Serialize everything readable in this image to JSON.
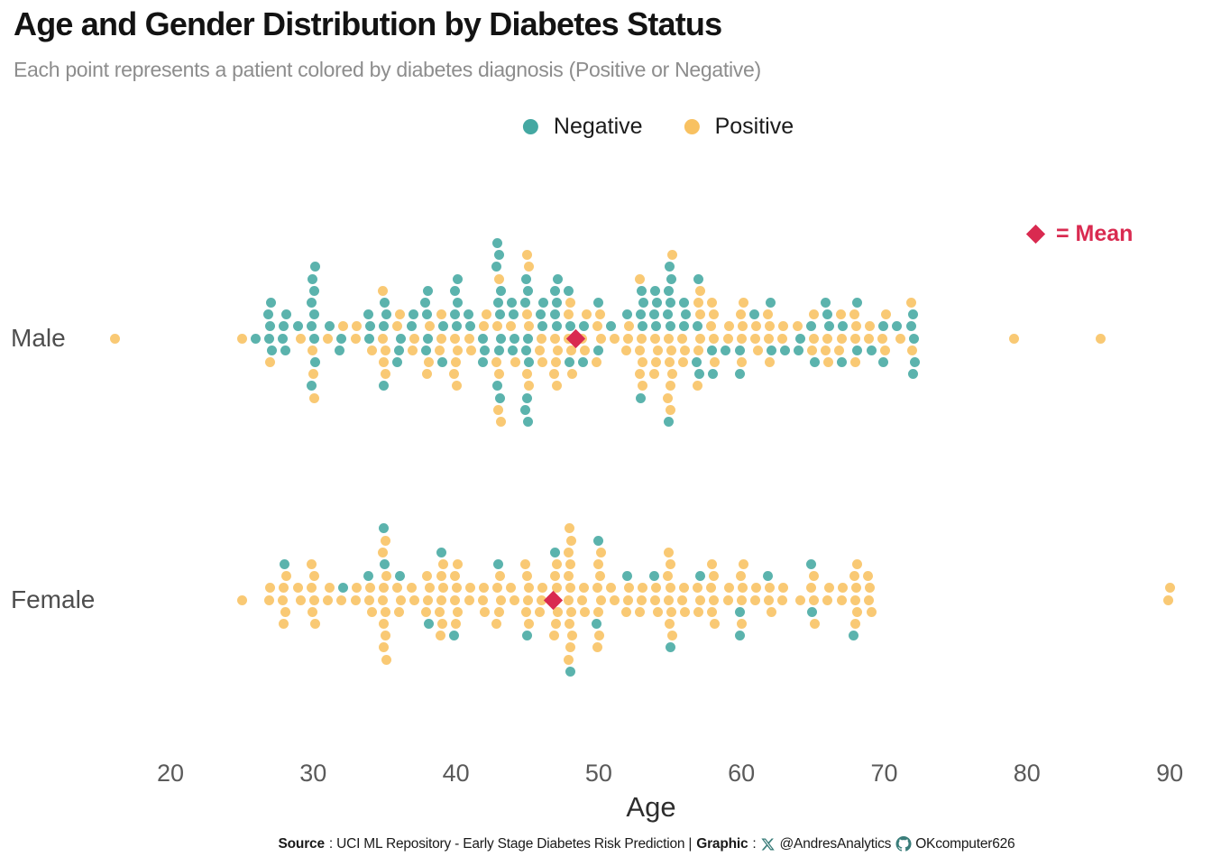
{
  "title": "Age and Gender Distribution by Diabetes Status",
  "subtitle": "Each point represents a patient colored by diabetes diagnosis (Positive or Negative)",
  "legend": {
    "negative_label": "Negative",
    "positive_label": "Positive"
  },
  "mean_legend": {
    "label": "= Mean"
  },
  "colors": {
    "negative": "#44a8a2",
    "positive": "#f8c161",
    "mean": "#d92a50",
    "footer_icon": "#3a7d7a"
  },
  "axis": {
    "label": "Age",
    "ticks": [
      20,
      30,
      40,
      50,
      60,
      70,
      80,
      90
    ]
  },
  "footer": {
    "source_label": "Source",
    "source_text": ": UCI ML Repository - Early Stage Diabetes Risk Prediction |",
    "graphic_label": "Graphic",
    "graphic_colon": ":",
    "twitter_handle": "@AndresAnalytics",
    "github_handle": "OKcomputer626"
  },
  "chart_data": {
    "type": "scatter",
    "subtype": "beeswarm",
    "title": "Age and Gender Distribution by Diabetes Status",
    "xlabel": "Age",
    "xlim": [
      15,
      92
    ],
    "categories": [
      "Male",
      "Female"
    ],
    "legend_entries": [
      "Negative",
      "Positive"
    ],
    "point_meaning": "one patient; bins give [age, negative_count, positive_count]",
    "groups": [
      {
        "label": "Male",
        "mean_age": 48.4,
        "bins": [
          [
            16,
            0,
            1
          ],
          [
            25,
            0,
            1
          ],
          [
            26,
            1,
            0
          ],
          [
            27,
            5,
            1
          ],
          [
            28,
            4,
            0
          ],
          [
            29,
            1,
            1
          ],
          [
            30,
            9,
            3
          ],
          [
            31,
            1,
            1
          ],
          [
            32,
            2,
            1
          ],
          [
            33,
            0,
            2
          ],
          [
            34,
            3,
            1
          ],
          [
            35,
            4,
            5
          ],
          [
            36,
            3,
            2
          ],
          [
            37,
            2,
            2
          ],
          [
            38,
            5,
            3
          ],
          [
            39,
            2,
            3
          ],
          [
            40,
            5,
            5
          ],
          [
            41,
            2,
            2
          ],
          [
            42,
            3,
            2
          ],
          [
            43,
            10,
            6
          ],
          [
            44,
            4,
            2
          ],
          [
            45,
            9,
            6
          ],
          [
            46,
            3,
            3
          ],
          [
            47,
            5,
            5
          ],
          [
            48,
            3,
            5
          ],
          [
            49,
            2,
            3
          ],
          [
            50,
            2,
            4
          ],
          [
            51,
            1,
            1
          ],
          [
            52,
            1,
            3
          ],
          [
            53,
            5,
            6
          ],
          [
            54,
            4,
            4
          ],
          [
            55,
            7,
            8
          ],
          [
            56,
            3,
            3
          ],
          [
            57,
            4,
            6
          ],
          [
            58,
            2,
            5
          ],
          [
            59,
            1,
            2
          ],
          [
            60,
            2,
            5
          ],
          [
            61,
            1,
            3
          ],
          [
            62,
            2,
            4
          ],
          [
            63,
            1,
            2
          ],
          [
            64,
            2,
            1
          ],
          [
            65,
            2,
            3
          ],
          [
            66,
            3,
            3
          ],
          [
            67,
            2,
            3
          ],
          [
            68,
            2,
            4
          ],
          [
            69,
            1,
            2
          ],
          [
            70,
            2,
            3
          ],
          [
            71,
            1,
            1
          ],
          [
            72,
            5,
            2
          ],
          [
            79,
            0,
            1
          ],
          [
            85,
            0,
            1
          ]
        ]
      },
      {
        "label": "Female",
        "mean_age": 46.8,
        "bins": [
          [
            25,
            0,
            1
          ],
          [
            27,
            0,
            2
          ],
          [
            28,
            1,
            5
          ],
          [
            29,
            0,
            2
          ],
          [
            30,
            0,
            6
          ],
          [
            31,
            0,
            2
          ],
          [
            32,
            1,
            1
          ],
          [
            33,
            0,
            2
          ],
          [
            34,
            1,
            3
          ],
          [
            35,
            2,
            10
          ],
          [
            36,
            1,
            3
          ],
          [
            37,
            0,
            2
          ],
          [
            38,
            1,
            4
          ],
          [
            39,
            1,
            7
          ],
          [
            40,
            1,
            6
          ],
          [
            41,
            0,
            2
          ],
          [
            42,
            0,
            3
          ],
          [
            43,
            1,
            5
          ],
          [
            44,
            0,
            2
          ],
          [
            45,
            1,
            6
          ],
          [
            46,
            0,
            3
          ],
          [
            47,
            1,
            7
          ],
          [
            48,
            1,
            12
          ],
          [
            49,
            0,
            3
          ],
          [
            50,
            2,
            8
          ],
          [
            51,
            0,
            2
          ],
          [
            52,
            1,
            3
          ],
          [
            53,
            0,
            3
          ],
          [
            54,
            1,
            3
          ],
          [
            55,
            1,
            8
          ],
          [
            56,
            0,
            3
          ],
          [
            57,
            1,
            3
          ],
          [
            58,
            0,
            6
          ],
          [
            59,
            0,
            2
          ],
          [
            60,
            2,
            5
          ],
          [
            61,
            0,
            2
          ],
          [
            62,
            1,
            3
          ],
          [
            63,
            0,
            2
          ],
          [
            64,
            0,
            1
          ],
          [
            65,
            2,
            4
          ],
          [
            66,
            0,
            2
          ],
          [
            67,
            0,
            2
          ],
          [
            68,
            1,
            6
          ],
          [
            69,
            0,
            4
          ],
          [
            90,
            0,
            2
          ]
        ]
      }
    ]
  }
}
